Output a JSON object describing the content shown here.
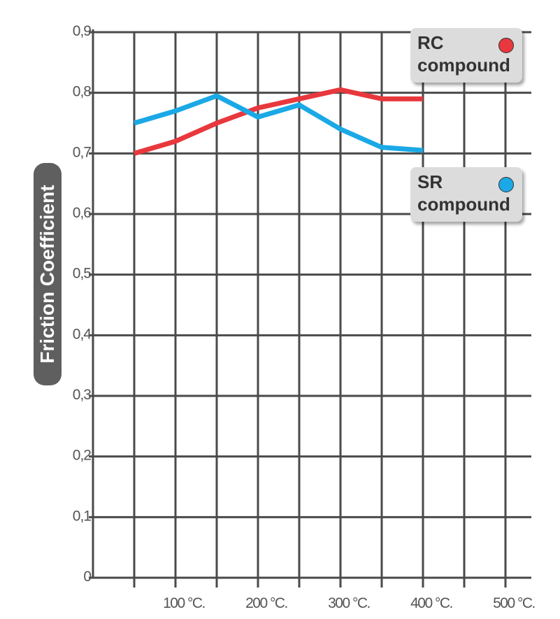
{
  "chart_data": {
    "type": "line",
    "ylabel": "Friction Coefficient",
    "xlabel": "",
    "ylim": [
      0,
      0.9
    ],
    "y_ticks": [
      "0",
      "0,1",
      "0,2",
      "0,3",
      "0,4",
      "0,5",
      "0,6",
      "0,7",
      "0,8",
      "0,9"
    ],
    "x_ticks": [
      {
        "value": 100,
        "label": "100 °C."
      },
      {
        "value": 200,
        "label": "200 °C."
      },
      {
        "value": 300,
        "label": "300 °C."
      },
      {
        "value": 400,
        "label": "400 °C."
      },
      {
        "value": 500,
        "label": "500 °C."
      }
    ],
    "xlim": [
      0,
      550
    ],
    "grid": true,
    "series": [
      {
        "name": "RC",
        "sub": "compound",
        "color": "#e8383d",
        "x": [
          50,
          100,
          150,
          200,
          250,
          300,
          350,
          400
        ],
        "values": [
          0.7,
          0.72,
          0.75,
          0.775,
          0.79,
          0.805,
          0.79,
          0.79
        ]
      },
      {
        "name": "SR",
        "sub": "compound",
        "color": "#1aa9e6",
        "x": [
          50,
          100,
          150,
          200,
          250,
          300,
          350,
          400
        ],
        "values": [
          0.75,
          0.77,
          0.795,
          0.76,
          0.78,
          0.74,
          0.71,
          0.705
        ]
      }
    ]
  }
}
